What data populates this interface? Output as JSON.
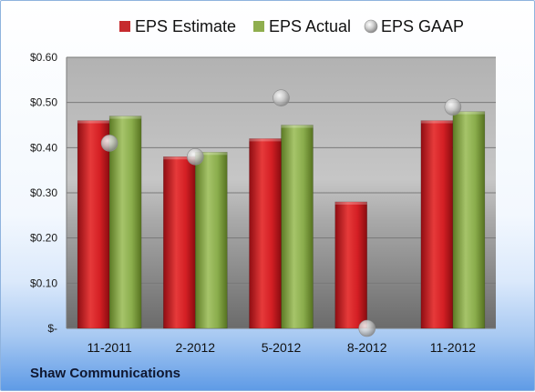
{
  "chart_data": {
    "type": "bar",
    "title": "",
    "xlabel": "",
    "ylabel": "",
    "categories": [
      "11-2011",
      "2-2012",
      "5-2012",
      "8-2012",
      "11-2012"
    ],
    "series": [
      {
        "name": "EPS Estimate",
        "kind": "bar",
        "color": "#c0161c",
        "values": [
          0.46,
          0.38,
          0.42,
          0.28,
          0.46
        ]
      },
      {
        "name": "EPS Actual",
        "kind": "bar",
        "color": "#7a9a3c",
        "values": [
          0.47,
          0.39,
          0.45,
          null,
          0.48
        ]
      },
      {
        "name": "EPS GAAP",
        "kind": "scatter",
        "color": "#b5b5b5",
        "values": [
          0.41,
          0.38,
          0.51,
          0.0,
          0.49
        ]
      }
    ],
    "ylim": [
      0,
      0.6
    ],
    "yticks": [
      0,
      0.1,
      0.2,
      0.3,
      0.4,
      0.5,
      0.6
    ],
    "ytick_labels": [
      "$-",
      "$0.10",
      "$0.20",
      "$0.30",
      "$0.40",
      "$0.50",
      "$0.60"
    ],
    "grid": true,
    "legend_position": "top"
  },
  "footer": {
    "company": "Shaw Communications"
  }
}
